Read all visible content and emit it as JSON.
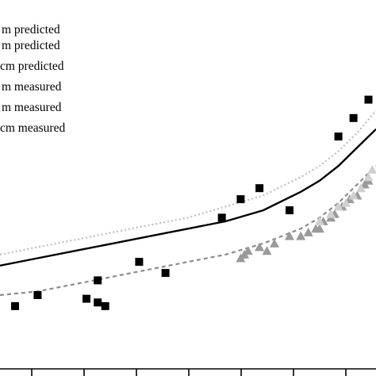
{
  "colors": {
    "background": "#ffffff",
    "solid_line": "#000000",
    "dashed_line": "#8c8c8c",
    "dotted_line": "#bdbdbd",
    "black_marker": "#000000",
    "dark_gray_marker": "#9a9a9a",
    "light_gray_marker": "#d0d0d0"
  },
  "legend": {
    "entries": [
      "m predicted",
      "m predicted",
      "cm predicted",
      "m measured",
      "m measured",
      "cm measured"
    ]
  },
  "chart_data": {
    "type": "scatter",
    "title": "",
    "xlabel": "",
    "ylabel": "",
    "xlim": [
      0,
      100
    ],
    "ylim": [
      0,
      100
    ],
    "grid": false,
    "legend_position": "top-left",
    "series": [
      {
        "kind": "line",
        "style": "solid",
        "x": [
          0,
          10,
          20,
          30,
          40,
          50,
          60,
          70,
          80,
          85,
          90,
          95,
          100
        ],
        "y": [
          28,
          30,
          32,
          34,
          36,
          38,
          40,
          43,
          48,
          51,
          55,
          60,
          65
        ]
      },
      {
        "kind": "line",
        "style": "dashed",
        "x": [
          0,
          10,
          20,
          30,
          40,
          50,
          60,
          70,
          80,
          85,
          90,
          95,
          100
        ],
        "y": [
          20,
          21,
          23,
          25,
          27,
          29,
          31,
          34,
          38,
          41,
          45,
          50,
          55
        ]
      },
      {
        "kind": "line",
        "style": "dotted",
        "x": [
          0,
          10,
          20,
          30,
          40,
          50,
          60,
          70,
          80,
          85,
          90,
          95,
          100
        ],
        "y": [
          31,
          33,
          35,
          37,
          39,
          41,
          44,
          47,
          52,
          55,
          59,
          64,
          70
        ]
      },
      {
        "kind": "points",
        "marker": "square",
        "x": [
          4,
          10,
          23,
          26,
          26,
          28,
          37,
          44,
          59,
          64,
          69,
          77,
          90,
          94,
          98
        ],
        "y": [
          17,
          20,
          19,
          24,
          18,
          17,
          29,
          26,
          41,
          46,
          49,
          43,
          63,
          68,
          73
        ]
      },
      {
        "kind": "points",
        "marker": "triangle",
        "x": [
          64,
          65,
          66,
          69,
          71,
          73,
          77,
          80,
          82,
          84,
          85,
          86,
          88,
          89,
          91,
          93,
          95,
          97,
          98
        ],
        "y": [
          30,
          31,
          32,
          33,
          32,
          34,
          36,
          36,
          37,
          38,
          38,
          40,
          41,
          42,
          44,
          46,
          47,
          50,
          51
        ]
      },
      {
        "kind": "points",
        "marker": "triangle-light",
        "x": [
          85,
          88,
          90,
          92,
          94,
          96,
          98,
          99
        ],
        "y": [
          40,
          42,
          44,
          45,
          47,
          49,
          52,
          54
        ]
      }
    ]
  }
}
